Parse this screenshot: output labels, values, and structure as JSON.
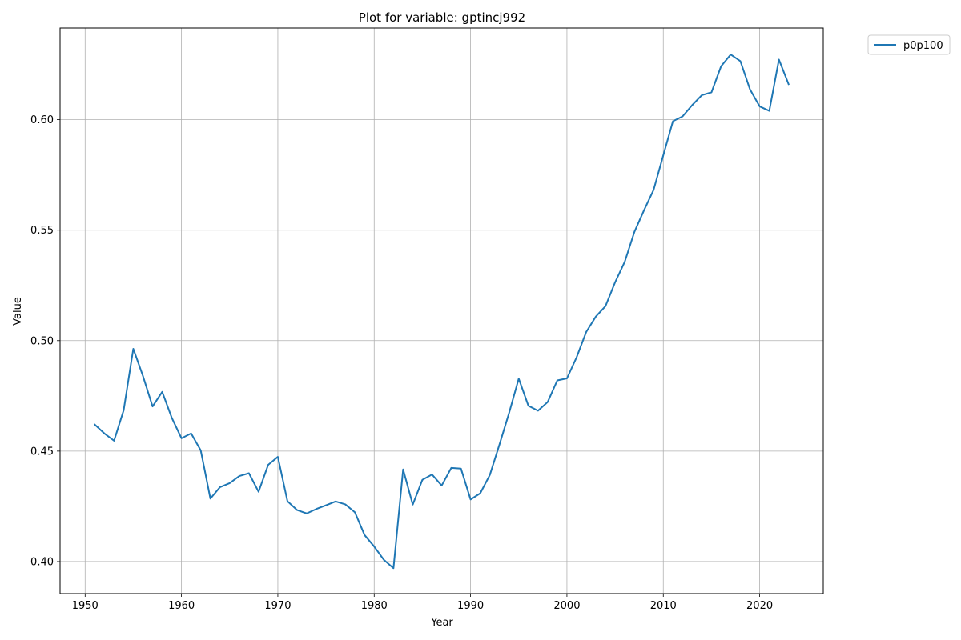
{
  "chart_data": {
    "type": "line",
    "title": "Plot for variable: gptincj992",
    "xlabel": "Year",
    "ylabel": "Value",
    "xlim": [
      1947.4,
      2026.6
    ],
    "ylim": [
      0.3855,
      0.6415
    ],
    "x_ticks": [
      1950,
      1960,
      1970,
      1980,
      1990,
      2000,
      2010,
      2020
    ],
    "y_ticks": [
      0.4,
      0.45,
      0.5,
      0.55,
      0.6
    ],
    "y_tick_labels": [
      "0.40",
      "0.45",
      "0.50",
      "0.55",
      "0.60"
    ],
    "grid": true,
    "legend_position": "upper right, outside plot area",
    "series": [
      {
        "name": "p0p100",
        "color": "#1f77b4",
        "x": [
          1951,
          1952,
          1953,
          1954,
          1955,
          1956,
          1957,
          1958,
          1959,
          1960,
          1961,
          1962,
          1963,
          1964,
          1965,
          1966,
          1967,
          1968,
          1969,
          1970,
          1971,
          1972,
          1973,
          1974,
          1975,
          1976,
          1977,
          1978,
          1979,
          1980,
          1981,
          1982,
          1983,
          1984,
          1985,
          1986,
          1987,
          1988,
          1989,
          1990,
          1991,
          1992,
          1993,
          1994,
          1995,
          1996,
          1997,
          1998,
          1999,
          2000,
          2001,
          2002,
          2003,
          2004,
          2005,
          2006,
          2007,
          2008,
          2009,
          2010,
          2011,
          2012,
          2013,
          2014,
          2015,
          2016,
          2017,
          2018,
          2019,
          2020,
          2021,
          2022,
          2023
        ],
        "values": [
          0.462,
          0.458,
          0.4547,
          0.4685,
          0.4963,
          0.484,
          0.4702,
          0.4768,
          0.465,
          0.4558,
          0.458,
          0.4503,
          0.4285,
          0.4337,
          0.4355,
          0.4387,
          0.44,
          0.4316,
          0.4438,
          0.4474,
          0.4273,
          0.4233,
          0.4218,
          0.4238,
          0.4255,
          0.4272,
          0.4259,
          0.4223,
          0.412,
          0.4068,
          0.4008,
          0.397,
          0.4417,
          0.4258,
          0.437,
          0.4394,
          0.4344,
          0.4424,
          0.4421,
          0.4281,
          0.4309,
          0.4392,
          0.453,
          0.4673,
          0.4828,
          0.4705,
          0.4683,
          0.4722,
          0.482,
          0.4829,
          0.4924,
          0.5039,
          0.5109,
          0.5156,
          0.5264,
          0.5357,
          0.5492,
          0.559,
          0.5683,
          0.5839,
          0.5993,
          0.6015,
          0.6066,
          0.6111,
          0.6124,
          0.6242,
          0.6295,
          0.6265,
          0.6137,
          0.606,
          0.604,
          0.6272,
          0.6161
        ]
      }
    ]
  }
}
